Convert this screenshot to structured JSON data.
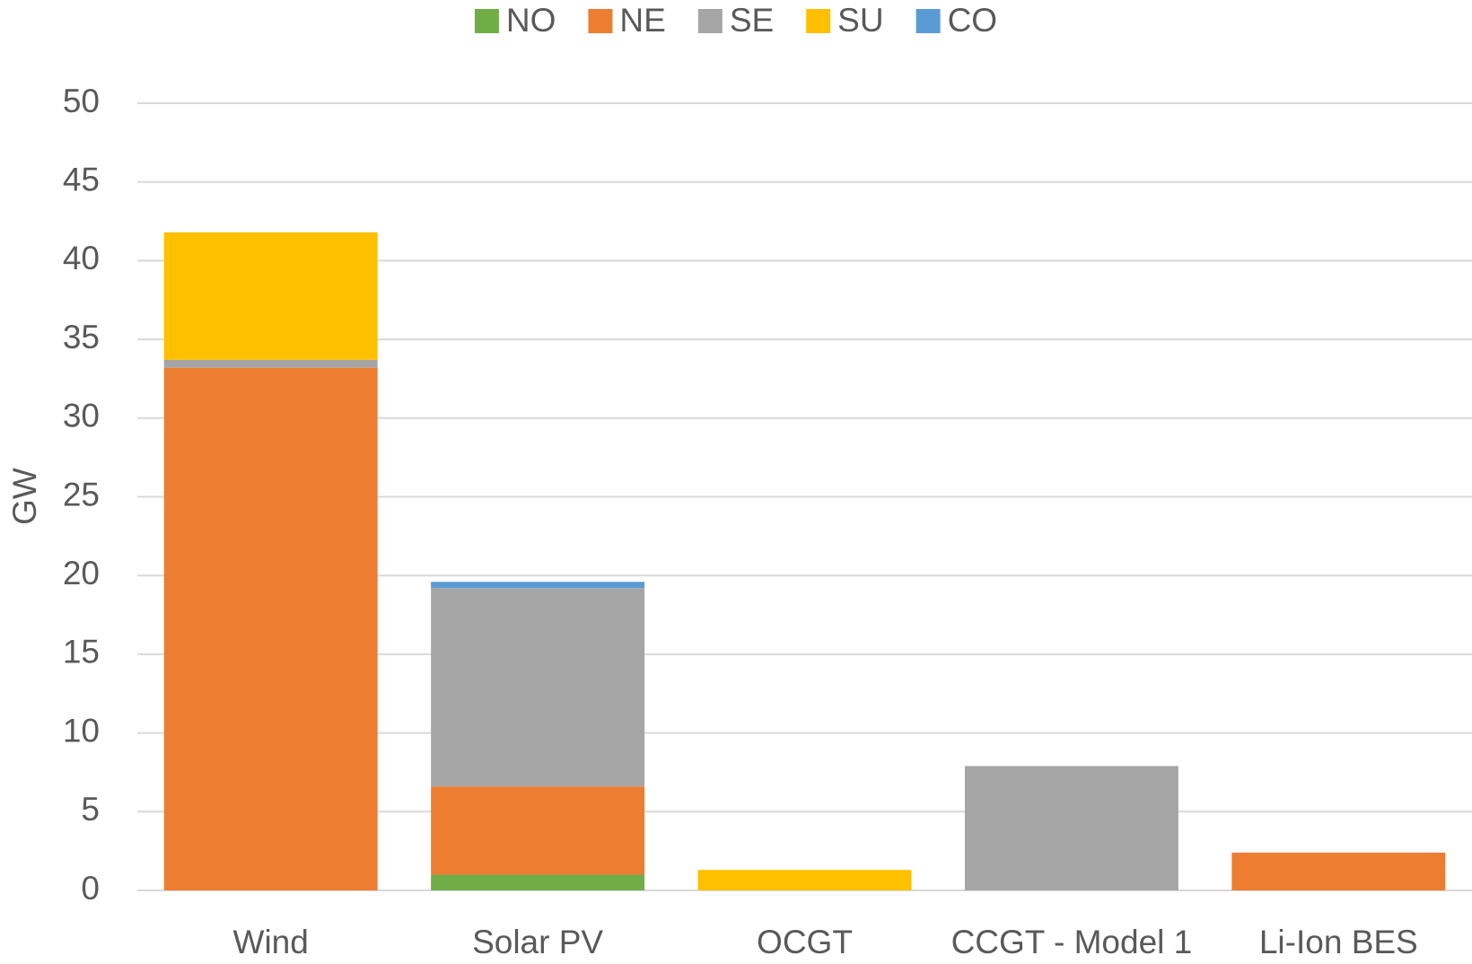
{
  "chart_data": {
    "type": "stacked_bar",
    "y_label": "GW",
    "categories": [
      "Wind",
      "Solar PV",
      "OCGT",
      "CCGT - Model 1",
      "Li-Ion BES"
    ],
    "series": [
      {
        "name": "NO",
        "color": "#70ad47",
        "values": [
          0,
          1.0,
          0,
          0,
          0
        ]
      },
      {
        "name": "NE",
        "color": "#ed7d31",
        "values": [
          33.2,
          5.6,
          0,
          0,
          2.4
        ]
      },
      {
        "name": "SE",
        "color": "#a5a5a5",
        "values": [
          0.5,
          12.6,
          0,
          7.9,
          0
        ]
      },
      {
        "name": "SU",
        "color": "#ffc000",
        "values": [
          8.1,
          0,
          1.3,
          0,
          0
        ]
      },
      {
        "name": "CO",
        "color": "#5b9bd5",
        "values": [
          0,
          0.4,
          0,
          0,
          0
        ]
      }
    ],
    "ylim": [
      0,
      50
    ],
    "yticks": [
      0,
      5,
      10,
      15,
      20,
      25,
      30,
      35,
      40,
      45,
      50
    ],
    "grid": true,
    "legend": "top"
  }
}
